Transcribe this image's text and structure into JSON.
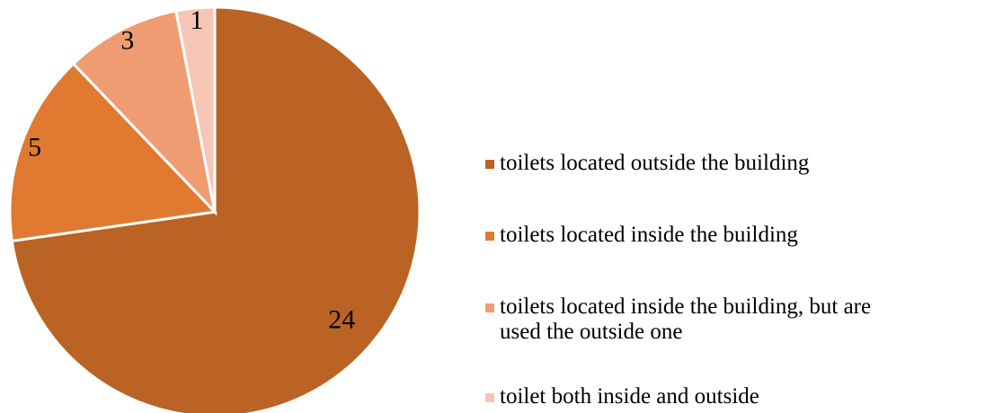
{
  "chart_data": {
    "type": "pie",
    "categories": [
      "toilets located outside the building",
      "toilets located inside the building",
      "toilets located inside the building, but are used the outside one",
      "toilet both inside and outside"
    ],
    "values": [
      24,
      5,
      3,
      1
    ],
    "colors": [
      "#BA6325",
      "#E07A31",
      "#F09C72",
      "#F7C5B5"
    ],
    "legend": "right"
  }
}
